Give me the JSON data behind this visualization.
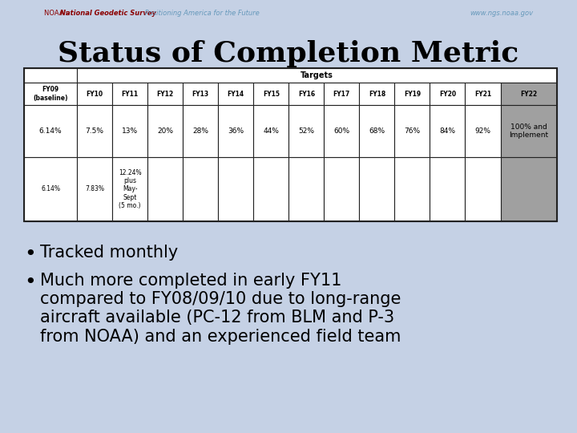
{
  "title": "Status of Completion Metric",
  "bg_color": "#c5d1e5",
  "targets_label": "Targets",
  "col_headers": [
    "FY09\n(baseline)",
    "FY10",
    "FY11",
    "FY12",
    "FY13",
    "FY14",
    "FY15",
    "FY16",
    "FY17",
    "FY18",
    "FY19",
    "FY20",
    "FY21",
    "FY22"
  ],
  "row1": [
    "6.14%",
    "7.5%",
    "13%",
    "20%",
    "28%",
    "36%",
    "44%",
    "52%",
    "60%",
    "68%",
    "76%",
    "84%",
    "92%",
    "100% and\nImplement"
  ],
  "row2": [
    "6.14%",
    "7.83%",
    "12.24%\nplus\nMay-\nSept\n(5 mo.)",
    "",
    "",
    "",
    "",
    "",
    "",
    "",
    "",
    "",
    "",
    ""
  ],
  "last_col_bg": "#a0a0a0",
  "hatch_cols_row1": [
    0,
    1,
    2
  ],
  "hatch_cols_row2": [
    0,
    1
  ],
  "bullet1": "Tracked monthly",
  "bullet2": "Much more completed in early FY11\ncompared to FY08/09/10 due to long-range\naircraft available (PC-12 from BLM and P-3\nfrom NOAA) and an experienced field team",
  "noaa_text1": "NOAA's ",
  "noaa_text2": "National Geodetic Survey",
  "noaa_text3": " Positioning America for the Future",
  "noaa_web": "www.ngs.noaa.gov"
}
